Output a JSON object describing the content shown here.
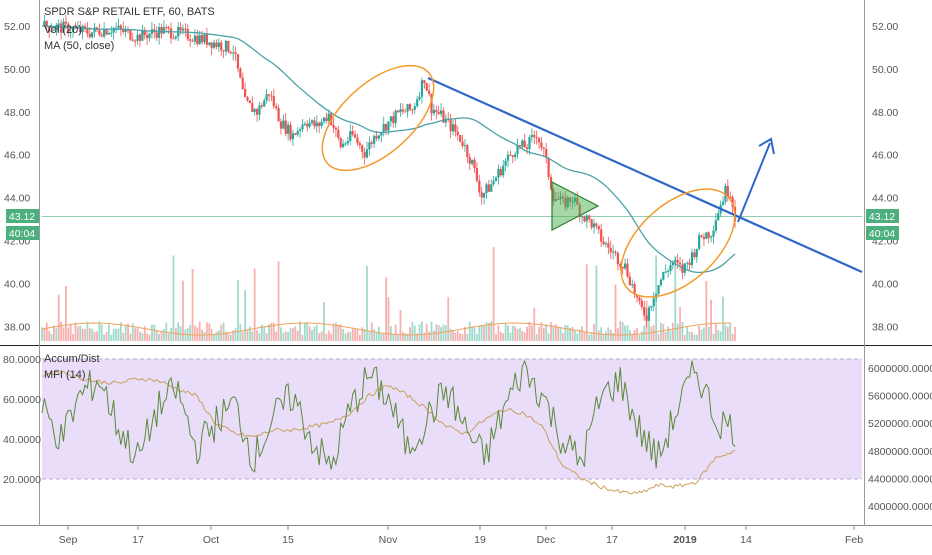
{
  "header": {
    "title": "SPDR S&P RETAIL ETF, 60, BATS",
    "vol_label": "Vol (20)",
    "ma_label": "MA (50, close)"
  },
  "price_badge": {
    "price": "43.12",
    "countdown": "40:04",
    "color": "#4caf7d"
  },
  "colors": {
    "up": "#26a69a",
    "down": "#ef5350",
    "ma_line": "#4aa3a8",
    "trend_line": "#2f67c9",
    "ellipse": "#f39a2c",
    "triangle_fill": "#4caf50",
    "mfi_line": "#5b8a3a",
    "ad_line": "#c9a15a",
    "mfi_band": "#e9ddfa"
  },
  "chart_data": [
    {
      "type": "candlestick",
      "title": "SPDR S&P RETAIL ETF, 60, BATS",
      "y_ticks": [
        "52.00",
        "50.00",
        "48.00",
        "46.00",
        "44.00",
        "42.00",
        "40.00",
        "38.00"
      ],
      "ylim": [
        37.3,
        52.8
      ],
      "last_price": 43.12,
      "close_path": [
        {
          "x": 0,
          "y": 52.0
        },
        {
          "x": 10,
          "y": 51.9
        },
        {
          "x": 20,
          "y": 51.7
        },
        {
          "x": 30,
          "y": 51.9
        },
        {
          "x": 40,
          "y": 51.5
        },
        {
          "x": 50,
          "y": 51.8
        },
        {
          "x": 60,
          "y": 51.6
        },
        {
          "x": 70,
          "y": 51.3
        },
        {
          "x": 80,
          "y": 50.9
        },
        {
          "x": 85,
          "y": 48.4
        },
        {
          "x": 90,
          "y": 48.0
        },
        {
          "x": 95,
          "y": 48.9
        },
        {
          "x": 100,
          "y": 47.5
        },
        {
          "x": 105,
          "y": 46.9
        },
        {
          "x": 110,
          "y": 47.6
        },
        {
          "x": 115,
          "y": 47.3
        },
        {
          "x": 120,
          "y": 47.9
        },
        {
          "x": 125,
          "y": 46.4
        },
        {
          "x": 130,
          "y": 46.9
        },
        {
          "x": 135,
          "y": 46.1
        },
        {
          "x": 140,
          "y": 47.0
        },
        {
          "x": 145,
          "y": 47.5
        },
        {
          "x": 150,
          "y": 48.0
        },
        {
          "x": 155,
          "y": 48.1
        },
        {
          "x": 160,
          "y": 49.6
        },
        {
          "x": 163,
          "y": 48.2
        },
        {
          "x": 167,
          "y": 47.8
        },
        {
          "x": 172,
          "y": 47.2
        },
        {
          "x": 176,
          "y": 46.6
        },
        {
          "x": 180,
          "y": 45.6
        },
        {
          "x": 184,
          "y": 44.1
        },
        {
          "x": 188,
          "y": 44.6
        },
        {
          "x": 193,
          "y": 45.5
        },
        {
          "x": 198,
          "y": 46.3
        },
        {
          "x": 203,
          "y": 46.4
        },
        {
          "x": 207,
          "y": 47.0
        },
        {
          "x": 210,
          "y": 46.1
        },
        {
          "x": 214,
          "y": 44.1
        },
        {
          "x": 218,
          "y": 43.7
        },
        {
          "x": 222,
          "y": 44.0
        },
        {
          "x": 226,
          "y": 43.2
        },
        {
          "x": 230,
          "y": 42.8
        },
        {
          "x": 235,
          "y": 41.9
        },
        {
          "x": 240,
          "y": 41.3
        },
        {
          "x": 244,
          "y": 40.8
        },
        {
          "x": 247,
          "y": 39.9
        },
        {
          "x": 250,
          "y": 38.9
        },
        {
          "x": 253,
          "y": 38.5
        },
        {
          "x": 256,
          "y": 39.5
        },
        {
          "x": 260,
          "y": 40.4
        },
        {
          "x": 264,
          "y": 41.0
        },
        {
          "x": 268,
          "y": 40.6
        },
        {
          "x": 272,
          "y": 41.3
        },
        {
          "x": 276,
          "y": 42.2
        },
        {
          "x": 280,
          "y": 42.4
        },
        {
          "x": 283,
          "y": 43.4
        },
        {
          "x": 286,
          "y": 44.3
        },
        {
          "x": 288,
          "y": 44.3
        },
        {
          "x": 290,
          "y": 43.1
        }
      ],
      "volume": {
        "label": "Vol (20)"
      },
      "overlays": {
        "ma_label": "MA (50, close)"
      }
    },
    {
      "type": "line",
      "title": "Accum/Dist",
      "left_axis_label": "MFI (14)",
      "left_ticks": [
        "80.0000",
        "60.0000",
        "40.0000",
        "20.0000"
      ],
      "left_ylim": [
        10,
        88
      ],
      "right_ticks": [
        "6000000.0000",
        "5600000.0000",
        "5200000.0000",
        "4800000.0000",
        "4400000.0000",
        "4000000.0000"
      ],
      "right_ylim": [
        3900000,
        6100000
      ],
      "mfi_band": [
        20,
        80
      ],
      "series": [
        {
          "name": "Accum/Dist",
          "axis": "right",
          "values": [
            5900000,
            5950000,
            5850000,
            5800000,
            5780000,
            5850000,
            5820000,
            5700000,
            5600000,
            5200000,
            5050000,
            5000000,
            5100000,
            5100000,
            5150000,
            5200000,
            5350000,
            5600000,
            5750000,
            5600000,
            5400000,
            5150000,
            5050000,
            5250000,
            5400000,
            5350000,
            5150000,
            4600000,
            4400000,
            4280000,
            4200000,
            4180000,
            4300000,
            4280000,
            4350000,
            4700000,
            4800000
          ]
        },
        {
          "name": "MFI (14)",
          "axis": "left",
          "values": [
            55,
            40,
            62,
            70,
            45,
            30,
            55,
            65,
            35,
            48,
            58,
            30,
            50,
            62,
            40,
            25,
            55,
            72,
            60,
            35,
            50,
            65,
            45,
            30,
            55,
            75,
            62,
            40,
            28,
            60,
            70,
            45,
            30,
            55,
            75,
            50,
            45
          ]
        }
      ]
    }
  ],
  "x_axis": {
    "labels": [
      "Sep",
      "17",
      "Oct",
      "15",
      "Nov",
      "19",
      "Dec",
      "17",
      "2019",
      "14",
      "Feb"
    ],
    "bold_label": "2019"
  }
}
